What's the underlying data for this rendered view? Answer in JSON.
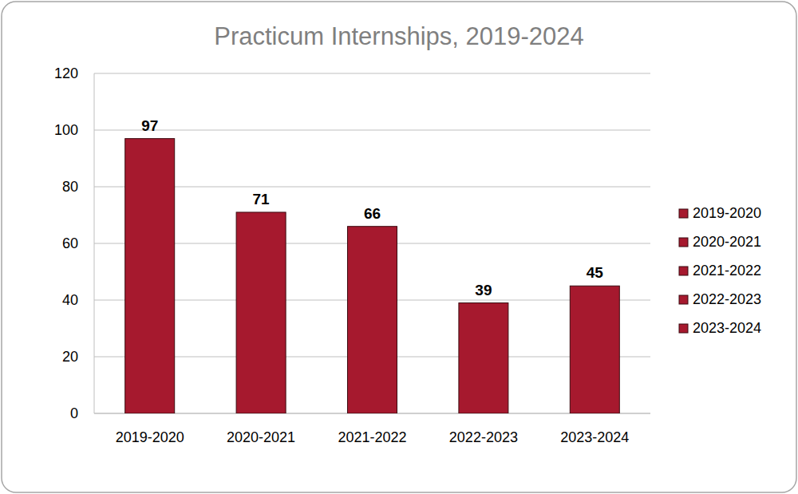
{
  "chart_data": {
    "type": "bar",
    "title": "Practicum Internships, 2019-2024",
    "categories": [
      "2019-2020",
      "2020-2021",
      "2021-2022",
      "2022-2023",
      "2023-2024"
    ],
    "values": [
      97,
      71,
      66,
      39,
      45
    ],
    "color": "#a6192e",
    "ylim": [
      0,
      120
    ],
    "yticks": [
      0,
      20,
      40,
      60,
      80,
      100,
      120
    ],
    "grid": true,
    "data_labels": true,
    "legend": "right"
  }
}
